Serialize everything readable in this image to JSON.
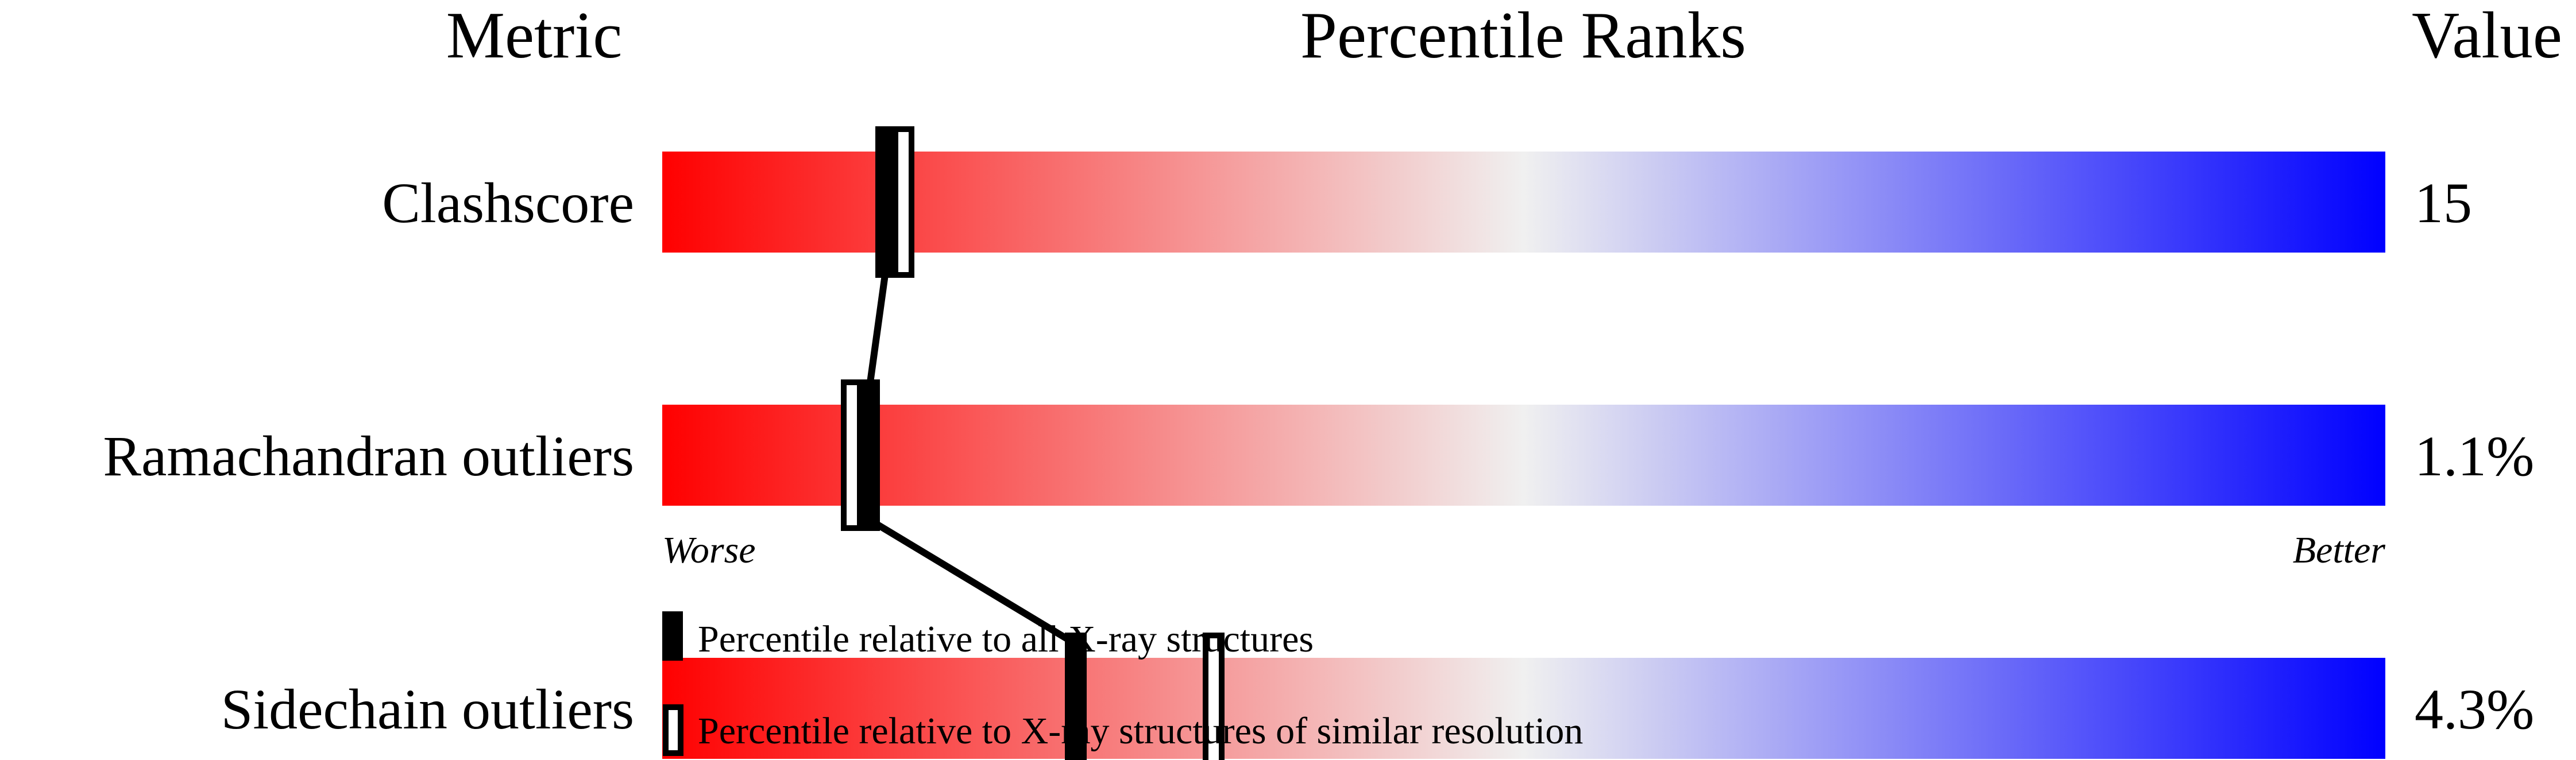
{
  "chart_data": {
    "type": "percentile-ranks",
    "headers": {
      "metric": "Metric",
      "ranks": "Percentile Ranks",
      "value": "Value"
    },
    "xlim": [
      0,
      100
    ],
    "axis_labels": {
      "left": "Worse",
      "right": "Better"
    },
    "gradient_colors": [
      "#ff0000",
      "#f0f0f0",
      "#0000ff"
    ],
    "rows": [
      {
        "metric": "Clashscore",
        "value": "15",
        "percentile_all": 13,
        "percentile_similar": 14
      },
      {
        "metric": "Ramachandran outliers",
        "value": "1.1%",
        "percentile_all": 12,
        "percentile_similar": 11
      },
      {
        "metric": "Sidechain outliers",
        "value": "4.3%",
        "percentile_all": 24,
        "percentile_similar": 32
      }
    ],
    "legend": {
      "filled": "Percentile relative to all X-ray structures",
      "open": "Percentile relative to X-ray structures of similar resolution"
    }
  }
}
